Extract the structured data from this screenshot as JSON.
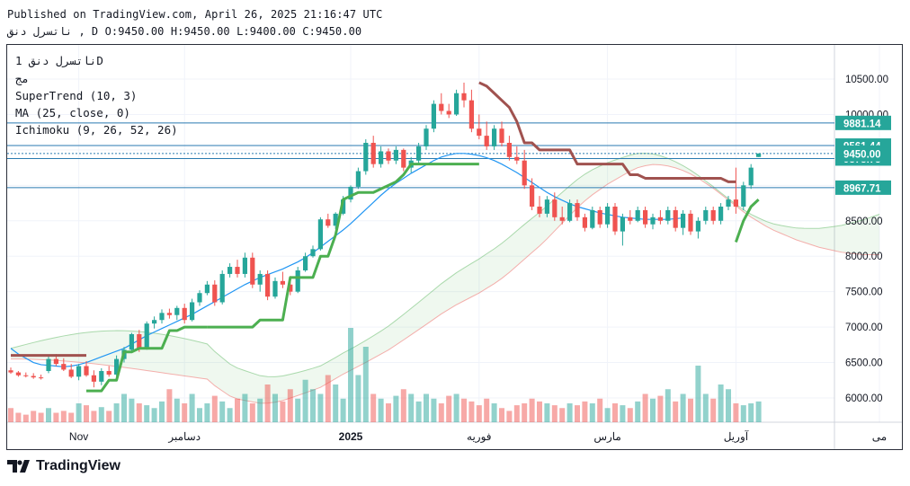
{
  "header": {
    "published": "Published on TradingView.com, April 26, 2025 21:16:47 UTC",
    "ohlc_line": "ناتسرل دنق , D O:9450.00 H:9450.00 L:9400.00 C:9450.00"
  },
  "legend": {
    "symbol": "ناتسرل دنق 1D",
    "sub": "مج",
    "supertrend": "SuperTrend (10, 3)",
    "ma": "MA (25, close, 0)",
    "ichimoku": "Ichimoku (9, 26, 52, 26)"
  },
  "brand": {
    "name": "TradingView"
  },
  "colors": {
    "up": "#26a69a",
    "down": "#ef5350",
    "supertrend_up": "#4caf50",
    "supertrend_down": "#a0524f",
    "ma": "#2196f3",
    "price_tag": "#26a69a",
    "level_tag": "#26a69a",
    "level_line": "#2a7ab0"
  },
  "chart_data": {
    "type": "candlestick",
    "y_axis": {
      "range": [
        5650,
        10950
      ],
      "ticks": [
        "10500.00",
        "10000.00",
        "9500.00",
        "9000.00",
        "8500.00",
        "8000.00",
        "7500.00",
        "7000.00",
        "6500.00",
        "6000.00"
      ]
    },
    "x_axis_labels": [
      {
        "label": "Nov",
        "index": 9
      },
      {
        "label": "دسامبر",
        "index": 23
      },
      {
        "label": "2025",
        "index": 45
      },
      {
        "label": "فوریه",
        "index": 62
      },
      {
        "label": "مارس",
        "index": 79
      },
      {
        "label": "آوریل",
        "index": 96
      },
      {
        "label": "می",
        "index": 115
      }
    ],
    "levels": [
      "9881.14",
      "9561.44",
      "9378.75",
      "8967.71"
    ],
    "last_price": "9450.00",
    "candles": [
      [
        6390,
        6430,
        6340,
        6360
      ],
      [
        6360,
        6380,
        6300,
        6320
      ],
      [
        6320,
        6360,
        6290,
        6310
      ],
      [
        6310,
        6350,
        6270,
        6290
      ],
      [
        6290,
        6330,
        6260,
        6280
      ],
      [
        6380,
        6600,
        6350,
        6550
      ],
      [
        6550,
        6620,
        6450,
        6480
      ],
      [
        6480,
        6560,
        6380,
        6400
      ],
      [
        6400,
        6480,
        6280,
        6300
      ],
      [
        6300,
        6480,
        6250,
        6450
      ],
      [
        6450,
        6520,
        6300,
        6320
      ],
      [
        6320,
        6390,
        6150,
        6230
      ],
      [
        6230,
        6420,
        6180,
        6380
      ],
      [
        6380,
        6450,
        6300,
        6330
      ],
      [
        6330,
        6600,
        6300,
        6550
      ],
      [
        6550,
        6720,
        6500,
        6680
      ],
      [
        6680,
        6920,
        6640,
        6900
      ],
      [
        6900,
        6960,
        6650,
        6700
      ],
      [
        6700,
        7080,
        6680,
        7050
      ],
      [
        7050,
        7150,
        6980,
        7100
      ],
      [
        7100,
        7250,
        7050,
        7200
      ],
      [
        7200,
        7260,
        7120,
        7170
      ],
      [
        7170,
        7300,
        7100,
        7270
      ],
      [
        7270,
        7330,
        7050,
        7100
      ],
      [
        7100,
        7400,
        7080,
        7350
      ],
      [
        7350,
        7520,
        7300,
        7480
      ],
      [
        7480,
        7650,
        7450,
        7600
      ],
      [
        7600,
        7660,
        7300,
        7350
      ],
      [
        7350,
        7800,
        7320,
        7750
      ],
      [
        7750,
        7900,
        7700,
        7850
      ],
      [
        7850,
        7950,
        7700,
        7750
      ],
      [
        7750,
        8050,
        7700,
        7980
      ],
      [
        7980,
        8050,
        7550,
        7600
      ],
      [
        7600,
        7800,
        7500,
        7750
      ],
      [
        7750,
        7800,
        7380,
        7430
      ],
      [
        7430,
        7700,
        7400,
        7650
      ],
      [
        7650,
        7780,
        7550,
        7600
      ],
      [
        7600,
        7720,
        7450,
        7500
      ],
      [
        7500,
        7850,
        7480,
        7800
      ],
      [
        7800,
        8050,
        7780,
        8000
      ],
      [
        8000,
        8150,
        7980,
        8100
      ],
      [
        8100,
        8550,
        8080,
        8520
      ],
      [
        8520,
        8600,
        8400,
        8430
      ],
      [
        8430,
        8620,
        8380,
        8600
      ],
      [
        8600,
        8850,
        8580,
        8800
      ],
      [
        8800,
        9000,
        8760,
        8980
      ],
      [
        8980,
        9250,
        8950,
        9200
      ],
      [
        9200,
        9650,
        9150,
        9600
      ],
      [
        9600,
        9700,
        9250,
        9300
      ],
      [
        9300,
        9550,
        9250,
        9480
      ],
      [
        9480,
        9520,
        9300,
        9350
      ],
      [
        9350,
        9550,
        9300,
        9500
      ],
      [
        9500,
        9520,
        9200,
        9250
      ],
      [
        9250,
        9400,
        9180,
        9350
      ],
      [
        9350,
        9600,
        9300,
        9550
      ],
      [
        9550,
        9850,
        9500,
        9800
      ],
      [
        9800,
        10200,
        9750,
        10150
      ],
      [
        10150,
        10300,
        10000,
        10050
      ],
      [
        10050,
        10150,
        9950,
        10000
      ],
      [
        10000,
        10350,
        9980,
        10300
      ],
      [
        10300,
        10450,
        10100,
        10200
      ],
      [
        10200,
        10350,
        9750,
        9800
      ],
      [
        9800,
        10000,
        9650,
        9700
      ],
      [
        9700,
        9900,
        9500,
        9550
      ],
      [
        9550,
        9850,
        9500,
        9800
      ],
      [
        9800,
        9900,
        9550,
        9600
      ],
      [
        9600,
        9700,
        9350,
        9400
      ],
      [
        9400,
        9550,
        9300,
        9350
      ],
      [
        9350,
        9500,
        8950,
        9000
      ],
      [
        9000,
        9100,
        8650,
        8700
      ],
      [
        8700,
        8850,
        8550,
        8600
      ],
      [
        8600,
        8850,
        8550,
        8800
      ],
      [
        8800,
        8900,
        8500,
        8550
      ],
      [
        8550,
        8700,
        8450,
        8500
      ],
      [
        8500,
        8800,
        8480,
        8750
      ],
      [
        8750,
        8800,
        8500,
        8550
      ],
      [
        8550,
        8600,
        8350,
        8400
      ],
      [
        8400,
        8700,
        8380,
        8650
      ],
      [
        8650,
        8700,
        8400,
        8450
      ],
      [
        8450,
        8750,
        8400,
        8700
      ],
      [
        8700,
        8750,
        8300,
        8350
      ],
      [
        8350,
        8600,
        8150,
        8550
      ],
      [
        8550,
        8650,
        8450,
        8500
      ],
      [
        8500,
        8700,
        8480,
        8650
      ],
      [
        8650,
        8700,
        8400,
        8450
      ],
      [
        8450,
        8600,
        8380,
        8550
      ],
      [
        8550,
        8650,
        8450,
        8500
      ],
      [
        8500,
        8700,
        8450,
        8650
      ],
      [
        8650,
        8700,
        8350,
        8400
      ],
      [
        8400,
        8650,
        8300,
        8600
      ],
      [
        8600,
        8650,
        8300,
        8350
      ],
      [
        8350,
        8550,
        8250,
        8500
      ],
      [
        8500,
        8700,
        8450,
        8650
      ],
      [
        8650,
        8700,
        8450,
        8500
      ],
      [
        8500,
        8750,
        8450,
        8700
      ],
      [
        8700,
        8850,
        8650,
        8800
      ],
      [
        8800,
        9250,
        8600,
        8700
      ],
      [
        8700,
        9050,
        8650,
        9000
      ],
      [
        9000,
        9300,
        8950,
        9250
      ],
      [
        9400,
        9450,
        9400,
        9450
      ]
    ],
    "ma": [
      6700,
      6620,
      6560,
      6500,
      6470,
      6460,
      6450,
      6440,
      6450,
      6470,
      6500,
      6540,
      6580,
      6620,
      6660,
      6700,
      6760,
      6820,
      6880,
      6930,
      6980,
      7030,
      7080,
      7130,
      7180,
      7240,
      7300,
      7360,
      7420,
      7480,
      7540,
      7600,
      7650,
      7700,
      7740,
      7780,
      7820,
      7870,
      7920,
      7980,
      8050,
      8130,
      8210,
      8290,
      8370,
      8460,
      8560,
      8660,
      8760,
      8860,
      8950,
      9030,
      9100,
      9170,
      9230,
      9290,
      9350,
      9400,
      9430,
      9450,
      9450,
      9440,
      9420,
      9390,
      9350,
      9300,
      9240,
      9180,
      9110,
      9040,
      8970,
      8900,
      8840,
      8790,
      8740,
      8700,
      8670,
      8640,
      8610,
      8590,
      8570,
      8550,
      8540,
      8530,
      8520,
      8520,
      8520,
      8520,
      8530,
      8540
    ],
    "supertrend": [
      {
        "from": 0,
        "to": 10,
        "dir": "down",
        "values": [
          6600,
          6600,
          6600,
          6600,
          6600,
          6600,
          6600,
          6600,
          6600,
          6600,
          6600
        ]
      },
      {
        "from": 10,
        "to": 26,
        "dir": "up",
        "values": [
          6100,
          6100,
          6100,
          6250,
          6250,
          6650,
          6650,
          6700,
          6700,
          6700,
          6700,
          6950,
          6950,
          7000,
          7000,
          7000,
          7000
        ]
      },
      {
        "from": 26,
        "to": 62,
        "dir": "up",
        "values": [
          7000,
          7000,
          7000,
          7000,
          7000,
          7000,
          7000,
          7100,
          7100,
          7100,
          7100,
          7700,
          7700,
          7700,
          7700,
          8000,
          8000,
          8300,
          8800,
          8850,
          8900,
          8900,
          8900,
          8950,
          9000,
          9050,
          9150,
          9300,
          9300,
          9300,
          9300,
          9300,
          9300,
          9300,
          9300,
          9300,
          9300
        ]
      },
      {
        "from": 62,
        "to": 96,
        "dir": "down",
        "values": [
          10450,
          10400,
          10300,
          10200,
          10100,
          9900,
          9600,
          9600,
          9500,
          9500,
          9500,
          9500,
          9500,
          9300,
          9300,
          9300,
          9300,
          9300,
          9300,
          9300,
          9150,
          9150,
          9100,
          9100,
          9100,
          9100,
          9100,
          9100,
          9100,
          9100,
          9100,
          9100,
          9100,
          9050,
          9050
        ]
      },
      {
        "from": 96,
        "to": 99,
        "dir": "up",
        "values": [
          8200,
          8500,
          8700,
          8800
        ]
      }
    ],
    "volume_ratio": [
      0.15,
      0.1,
      0.08,
      0.12,
      0.1,
      0.15,
      0.1,
      0.12,
      0.1,
      0.2,
      0.18,
      0.12,
      0.16,
      0.12,
      0.2,
      0.3,
      0.25,
      0.2,
      0.18,
      0.15,
      0.22,
      0.35,
      0.25,
      0.2,
      0.3,
      0.15,
      0.2,
      0.28,
      0.22,
      0.15,
      0.25,
      0.3,
      0.2,
      0.25,
      0.4,
      0.3,
      0.22,
      0.35,
      0.25,
      0.45,
      0.35,
      0.3,
      0.5,
      0.4,
      0.25,
      1.0,
      0.5,
      0.8,
      0.3,
      0.25,
      0.2,
      0.28,
      0.35,
      0.3,
      0.22,
      0.3,
      0.25,
      0.2,
      0.28,
      0.3,
      0.25,
      0.22,
      0.18,
      0.25,
      0.2,
      0.15,
      0.12,
      0.18,
      0.2,
      0.25,
      0.22,
      0.2,
      0.18,
      0.15,
      0.2,
      0.18,
      0.22,
      0.2,
      0.25,
      0.15,
      0.2,
      0.18,
      0.15,
      0.22,
      0.3,
      0.25,
      0.28,
      0.35,
      0.22,
      0.3,
      0.25,
      0.6,
      0.3,
      0.25,
      0.4,
      0.35,
      0.2,
      0.18,
      0.2,
      0.22
    ]
  }
}
